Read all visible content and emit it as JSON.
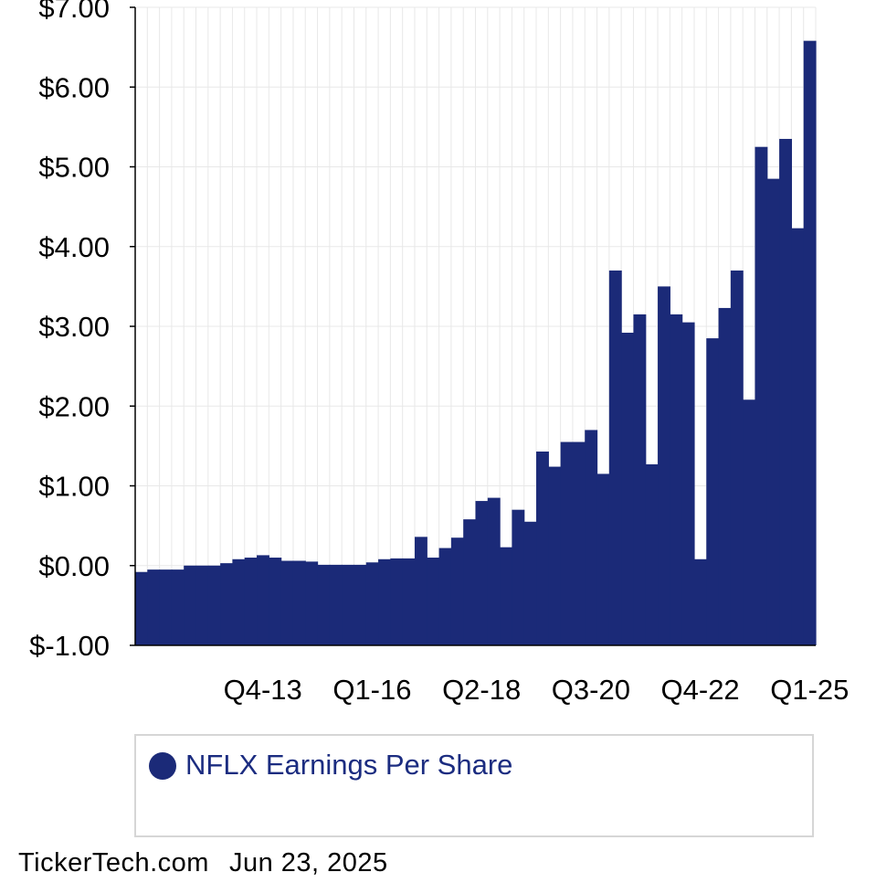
{
  "colors": {
    "bar": "#1b2a78",
    "grid": "#e8e8e8",
    "axis": "#000000",
    "legend_text": "#1b2c80"
  },
  "chart_data": {
    "type": "bar",
    "ylim": [
      -1,
      7
    ],
    "yticks": [
      "$7.00",
      "$6.00",
      "$5.00",
      "$4.00",
      "$3.00",
      "$2.00",
      "$1.00",
      "$0.00",
      "$-1.00"
    ],
    "ytick_values": [
      7,
      6,
      5,
      4,
      3,
      2,
      1,
      0,
      -1
    ],
    "xtick_labels": [
      "Q4-13",
      "Q1-16",
      "Q2-18",
      "Q3-20",
      "Q4-22",
      "Q1-25"
    ],
    "xtick_categories": [
      "Q4-13",
      "Q1-16",
      "Q2-18",
      "Q3-20",
      "Q4-22",
      "Q1-25"
    ],
    "grid": true,
    "legend_placement": "bottom",
    "categories": [
      "Q2-11",
      "Q3-11",
      "Q4-11",
      "Q1-12",
      "Q2-12",
      "Q3-12",
      "Q4-12",
      "Q1-13",
      "Q2-13",
      "Q3-13",
      "Q4-13",
      "Q1-14",
      "Q2-14",
      "Q3-14",
      "Q4-14",
      "Q1-15",
      "Q2-15",
      "Q3-15",
      "Q4-15",
      "Q1-16",
      "Q2-16",
      "Q3-16",
      "Q4-16",
      "Q1-17",
      "Q2-17",
      "Q3-17",
      "Q4-17",
      "Q1-18",
      "Q2-18",
      "Q3-18",
      "Q4-18",
      "Q1-19",
      "Q2-19",
      "Q3-19",
      "Q4-19",
      "Q1-20",
      "Q2-20",
      "Q3-20",
      "Q4-20",
      "Q1-21",
      "Q2-21",
      "Q3-21",
      "Q4-21",
      "Q1-22",
      "Q2-22",
      "Q3-22",
      "Q4-22",
      "Q1-23",
      "Q2-23",
      "Q3-23",
      "Q4-23",
      "Q1-24",
      "Q2-24",
      "Q3-24",
      "Q4-24",
      "Q1-25"
    ],
    "series": [
      {
        "name": "NFLX Earnings Per Share",
        "values": [
          -0.08,
          -0.05,
          -0.05,
          -0.05,
          0.0,
          0.0,
          0.0,
          0.03,
          0.08,
          0.1,
          0.13,
          0.1,
          0.06,
          0.06,
          0.05,
          0.01,
          0.01,
          0.01,
          0.01,
          0.04,
          0.08,
          0.09,
          0.09,
          0.36,
          0.1,
          0.22,
          0.35,
          0.58,
          0.81,
          0.85,
          0.23,
          0.7,
          0.55,
          1.43,
          1.24,
          1.55,
          1.55,
          1.7,
          1.15,
          3.7,
          2.92,
          3.15,
          1.27,
          3.5,
          3.15,
          3.05,
          0.08,
          2.85,
          3.23,
          3.7,
          2.08,
          5.25,
          4.85,
          5.35,
          4.23,
          6.58
        ]
      }
    ]
  },
  "legend": {
    "label": "NFLX Earnings Per Share"
  },
  "footer": {
    "brand": "TickerTech.com",
    "date": "Jun 23, 2025"
  }
}
